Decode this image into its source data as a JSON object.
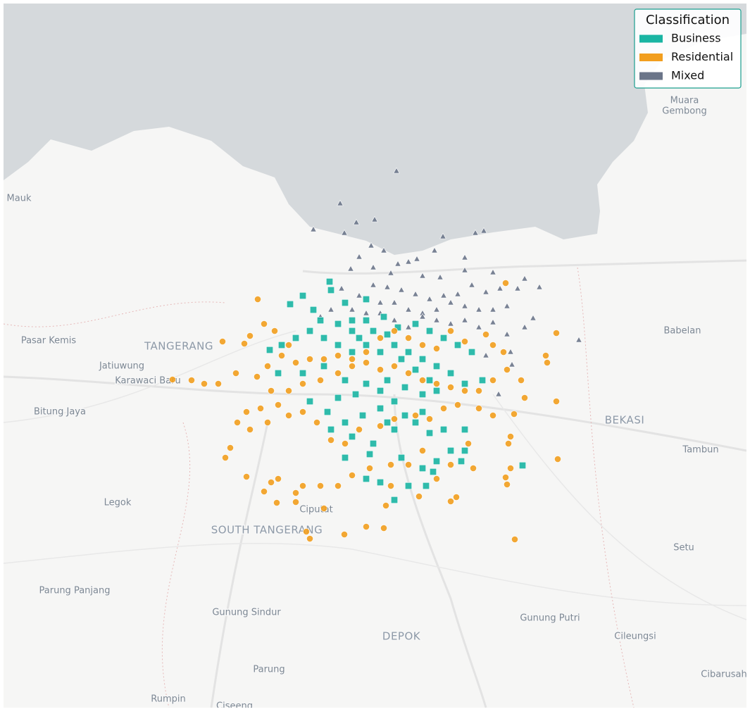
{
  "chart_data": {
    "type": "map",
    "xlim": [
      106.405,
      107.46
    ],
    "ylim": [
      -6.705,
      -5.705
    ],
    "legend": {
      "title": "Classification",
      "loc": "upper right"
    },
    "places": [
      {
        "name": "Muara",
        "kind": "town",
        "lon": 107.372,
        "lat": -5.843
      },
      {
        "name": "Gembong",
        "kind": "town",
        "lon": 107.372,
        "lat": -5.858
      },
      {
        "name": "Mauk",
        "kind": "town",
        "lon": 106.427,
        "lat": -5.982
      },
      {
        "name": "Pasar Kemis",
        "kind": "town",
        "lon": 106.469,
        "lat": -6.184
      },
      {
        "name": "TANGERANG",
        "kind": "city",
        "lon": 106.654,
        "lat": -6.192
      },
      {
        "name": "Jatiuwung",
        "kind": "town",
        "lon": 106.573,
        "lat": -6.22
      },
      {
        "name": "Karawaci Baru",
        "kind": "town",
        "lon": 106.61,
        "lat": -6.241
      },
      {
        "name": "Bitung Jaya",
        "kind": "town",
        "lon": 106.485,
        "lat": -6.285
      },
      {
        "name": "BEKASI",
        "kind": "city",
        "lon": 107.287,
        "lat": -6.297
      },
      {
        "name": "Babelan",
        "kind": "town",
        "lon": 107.369,
        "lat": -6.17
      },
      {
        "name": "Tambun",
        "kind": "town",
        "lon": 107.395,
        "lat": -6.339
      },
      {
        "name": "Legok",
        "kind": "town",
        "lon": 106.567,
        "lat": -6.414
      },
      {
        "name": "Ciputat",
        "kind": "town",
        "lon": 106.849,
        "lat": -6.424
      },
      {
        "name": "SOUTH TANGERANG",
        "kind": "city",
        "lon": 106.779,
        "lat": -6.453
      },
      {
        "name": "Setu",
        "kind": "town",
        "lon": 107.371,
        "lat": -6.478
      },
      {
        "name": "Parung Panjang",
        "kind": "town",
        "lon": 106.506,
        "lat": -6.539
      },
      {
        "name": "Gunung Sindur",
        "kind": "town",
        "lon": 106.75,
        "lat": -6.57
      },
      {
        "name": "DEPOK",
        "kind": "city",
        "lon": 106.97,
        "lat": -6.604
      },
      {
        "name": "Gunung Putri",
        "kind": "town",
        "lon": 107.181,
        "lat": -6.578
      },
      {
        "name": "Cileungsi",
        "kind": "town",
        "lon": 107.302,
        "lat": -6.604
      },
      {
        "name": "Parung",
        "kind": "town",
        "lon": 106.782,
        "lat": -6.651
      },
      {
        "name": "Cibarusah",
        "kind": "town",
        "lon": 107.428,
        "lat": -6.658
      },
      {
        "name": "Rumpin",
        "kind": "town",
        "lon": 106.639,
        "lat": -6.693
      },
      {
        "name": "Ciseeng",
        "kind": "town",
        "lon": 106.733,
        "lat": -6.703
      }
    ],
    "series": [
      {
        "name": "Business",
        "color": "#1ab5a3",
        "marker": "square",
        "lon": [
          106.868,
          106.83,
          106.812,
          106.845,
          106.87,
          106.89,
          106.92,
          106.855,
          106.88,
          106.9,
          106.92,
          106.945,
          106.965,
          106.99,
          107.01,
          107.03,
          107.05,
          107.07,
          107.085,
          107.06,
          107.04,
          107.02,
          107.0,
          106.98,
          106.96,
          106.94,
          106.92,
          106.9,
          106.88,
          106.86,
          106.84,
          106.82,
          106.8,
          106.783,
          106.795,
          106.83,
          106.86,
          106.89,
          106.92,
          106.95,
          106.975,
          107.0,
          107.02,
          106.96,
          106.94,
          106.915,
          106.89,
          106.87,
          106.9,
          106.93,
          106.96,
          106.99,
          107.01,
          107.03,
          107.06,
          107.04,
          107.02,
          107.0,
          106.98,
          106.96,
          106.94,
          106.92,
          106.89,
          106.925,
          106.97,
          107.005,
          107.015,
          107.06,
          107.142,
          107.055,
          107.0,
          106.975,
          106.95,
          106.865,
          106.84,
          106.9,
          106.91,
          106.93,
          106.95,
          106.97,
          106.99,
          107.01,
          106.94,
          106.905,
          106.88
        ],
        "lat": [
          -6.1,
          -6.12,
          -6.132,
          -6.14,
          -6.112,
          -6.13,
          -6.125,
          -6.155,
          -6.16,
          -6.17,
          -6.155,
          -6.15,
          -6.165,
          -6.16,
          -6.17,
          -6.18,
          -6.19,
          -6.2,
          -6.24,
          -6.245,
          -6.23,
          -6.22,
          -6.21,
          -6.2,
          -6.19,
          -6.2,
          -6.19,
          -6.2,
          -6.19,
          -6.18,
          -6.17,
          -6.18,
          -6.19,
          -6.197,
          -6.23,
          -6.23,
          -6.22,
          -6.24,
          -6.245,
          -6.24,
          -6.25,
          -6.26,
          -6.255,
          -6.27,
          -6.28,
          -6.29,
          -6.3,
          -6.31,
          -6.32,
          -6.33,
          -6.31,
          -6.3,
          -6.315,
          -6.31,
          -6.31,
          -6.34,
          -6.355,
          -6.365,
          -6.39,
          -6.41,
          -6.385,
          -6.38,
          -6.35,
          -6.345,
          -6.35,
          -6.39,
          -6.37,
          -6.34,
          -6.361,
          -6.355,
          -6.285,
          -6.29,
          -6.3,
          -6.285,
          -6.27,
          -6.155,
          -6.18,
          -6.17,
          -6.175,
          -6.21,
          -6.225,
          -6.24,
          -6.255,
          -6.26,
          -6.265
        ]
      },
      {
        "name": "Residential",
        "color": "#f29e1e",
        "marker": "circle",
        "lon": [
          107.118,
          106.766,
          106.775,
          106.755,
          106.716,
          106.747,
          106.79,
          106.81,
          106.8,
          106.78,
          106.765,
          106.735,
          106.71,
          106.69,
          106.672,
          106.645,
          106.785,
          106.81,
          106.83,
          106.855,
          106.88,
          106.9,
          106.92,
          106.94,
          106.96,
          106.98,
          107.0,
          107.02,
          107.04,
          107.06,
          107.08,
          107.1,
          107.12,
          107.14,
          107.115,
          107.1,
          107.09,
          107.06,
          107.04,
          107.02,
          107.0,
          106.98,
          106.96,
          106.94,
          106.92,
          106.9,
          106.88,
          106.86,
          106.84,
          106.82,
          106.795,
          106.77,
          106.75,
          106.737,
          106.755,
          106.78,
          106.81,
          106.83,
          106.85,
          106.87,
          106.89,
          106.91,
          106.94,
          106.96,
          106.99,
          107.01,
          107.03,
          107.05,
          107.08,
          107.1,
          107.13,
          107.145,
          107.175,
          107.177,
          107.19,
          107.19,
          107.192,
          107.125,
          107.122,
          107.125,
          107.118,
          107.12,
          107.065,
          107.072,
          107.04,
          107.02,
          107.0,
          106.98,
          106.955,
          106.925,
          106.9,
          106.88,
          106.855,
          106.83,
          106.82,
          106.795,
          106.785,
          106.775,
          106.75,
          106.72,
          106.727,
          106.793,
          106.82,
          106.948,
          106.86,
          106.945,
          106.92,
          106.889,
          106.84,
          106.835,
          107.048,
          107.04,
          107.131,
          106.995,
          106.955
        ],
        "lat": [
          -6.102,
          -6.125,
          -6.16,
          -6.177,
          -6.185,
          -6.188,
          -6.17,
          -6.19,
          -6.205,
          -6.22,
          -6.235,
          -6.23,
          -6.245,
          -6.245,
          -6.24,
          -6.239,
          -6.255,
          -6.255,
          -6.245,
          -6.24,
          -6.23,
          -6.22,
          -6.215,
          -6.225,
          -6.22,
          -6.23,
          -6.24,
          -6.245,
          -6.25,
          -6.255,
          -6.255,
          -6.24,
          -6.225,
          -6.24,
          -6.2,
          -6.19,
          -6.175,
          -6.185,
          -6.17,
          -6.195,
          -6.19,
          -6.18,
          -6.17,
          -6.18,
          -6.2,
          -6.21,
          -6.205,
          -6.21,
          -6.21,
          -6.215,
          -6.275,
          -6.28,
          -6.285,
          -6.3,
          -6.31,
          -6.3,
          -6.29,
          -6.285,
          -6.3,
          -6.325,
          -6.33,
          -6.31,
          -6.305,
          -6.295,
          -6.29,
          -6.295,
          -6.28,
          -6.275,
          -6.28,
          -6.29,
          -6.288,
          -6.265,
          -6.205,
          -6.215,
          -6.173,
          -6.27,
          -6.352,
          -6.32,
          -6.33,
          -6.365,
          -6.378,
          -6.388,
          -6.33,
          -6.365,
          -6.36,
          -6.38,
          -6.34,
          -6.36,
          -6.36,
          -6.365,
          -6.375,
          -6.39,
          -6.39,
          -6.39,
          -6.4,
          -6.38,
          -6.385,
          -6.398,
          -6.377,
          -6.35,
          -6.336,
          -6.414,
          -6.413,
          -6.418,
          -6.422,
          -6.45,
          -6.448,
          -6.459,
          -6.465,
          -6.455,
          -6.406,
          -6.412,
          -6.466,
          -6.405,
          -6.39
        ]
      },
      {
        "name": "Mixed",
        "color": "#6b7589",
        "marker": "triangle",
        "lon": [
          106.963,
          106.883,
          106.932,
          106.906,
          106.845,
          106.889,
          107.029,
          107.075,
          107.087,
          106.927,
          106.945,
          107.017,
          106.992,
          107.06,
          106.965,
          106.91,
          106.98,
          106.898,
          106.93,
          106.955,
          107.0,
          107.025,
          107.06,
          107.1,
          107.145,
          107.166,
          107.135,
          107.11,
          107.09,
          107.07,
          107.05,
          107.03,
          107.01,
          106.99,
          106.97,
          106.95,
          106.93,
          106.91,
          106.885,
          106.9,
          106.92,
          106.94,
          106.96,
          106.98,
          107.0,
          107.02,
          107.04,
          107.06,
          107.08,
          107.1,
          107.12,
          107.157,
          107.145,
          107.12,
          107.1,
          107.08,
          107.06,
          107.04,
          107.02,
          107.0,
          107.125,
          107.127,
          107.108,
          107.222,
          107.09,
          106.98,
          106.96,
          106.94,
          106.87,
          106.855
        ],
        "lat": [
          -5.943,
          -5.989,
          -6.012,
          -6.016,
          -6.026,
          -6.031,
          -6.036,
          -6.031,
          -6.028,
          -6.049,
          -6.056,
          -6.056,
          -6.068,
          -6.066,
          -6.075,
          -6.065,
          -6.072,
          -6.082,
          -6.08,
          -6.088,
          -6.092,
          -6.094,
          -6.084,
          -6.087,
          -6.096,
          -6.108,
          -6.11,
          -6.11,
          -6.115,
          -6.105,
          -6.118,
          -6.12,
          -6.125,
          -6.118,
          -6.112,
          -6.108,
          -6.105,
          -6.12,
          -6.11,
          -6.14,
          -6.145,
          -6.13,
          -6.13,
          -6.14,
          -6.145,
          -6.14,
          -6.13,
          -6.135,
          -6.14,
          -6.14,
          -6.135,
          -6.152,
          -6.165,
          -6.175,
          -6.158,
          -6.165,
          -6.155,
          -6.16,
          -6.155,
          -6.15,
          -6.2,
          -6.218,
          -6.26,
          -6.183,
          -6.205,
          -6.165,
          -6.155,
          -6.145,
          -6.14,
          -6.15
        ]
      }
    ]
  }
}
